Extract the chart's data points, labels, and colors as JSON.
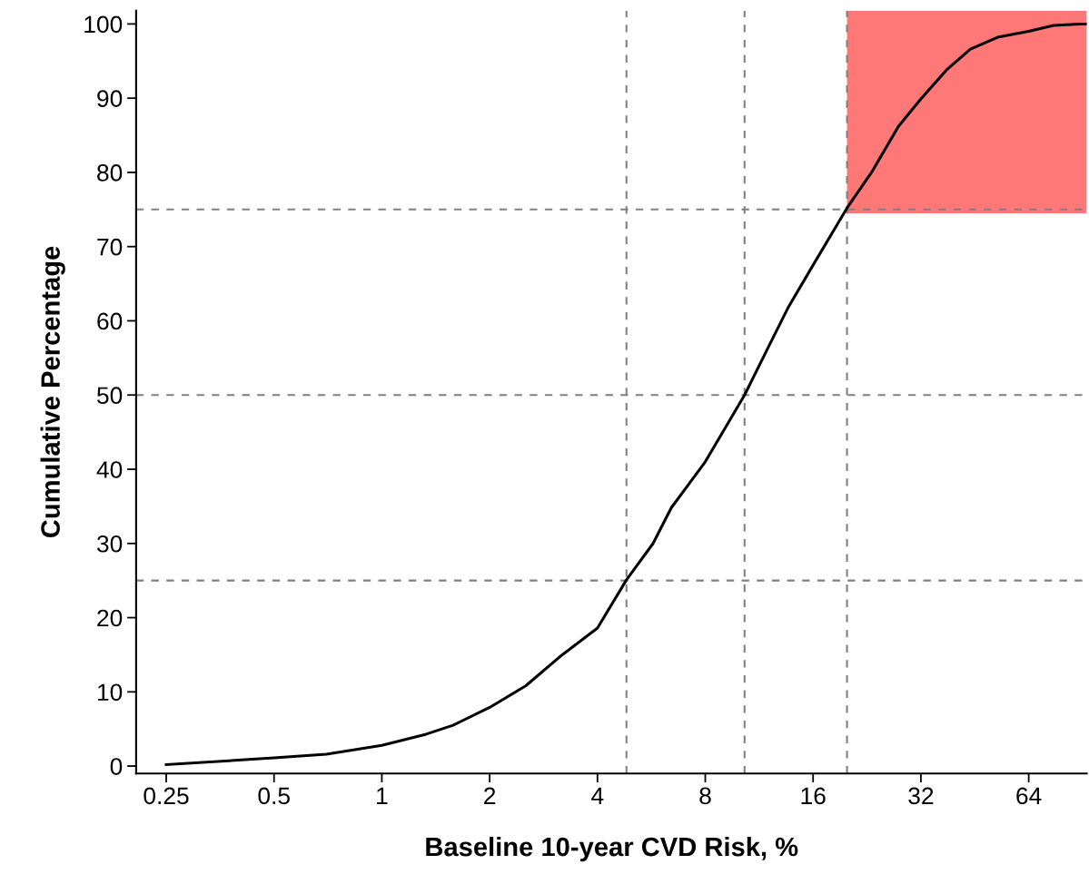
{
  "chart_data": {
    "type": "line",
    "xlabel": "Baseline 10-year CVD Risk, %",
    "ylabel": "Cumulative Percentage",
    "log": "x",
    "grid": false,
    "xlim": [
      0.206,
      93
    ],
    "xticks": [
      0.25,
      0.5,
      1,
      2,
      4,
      8,
      16,
      32,
      64
    ],
    "ylim": [
      -1,
      101.8
    ],
    "yticks": [
      0,
      10,
      20,
      30,
      40,
      50,
      60,
      70,
      80,
      90,
      100
    ],
    "series": [
      {
        "color": "#000000",
        "x": [
          0.25,
          0.5,
          0.7,
          1,
          1.33,
          1.58,
          2,
          2.52,
          3.19,
          4,
          4.82,
          5.72,
          6.43,
          8,
          10.3,
          12.1,
          13.6,
          16,
          19.9,
          23.3,
          27.7,
          32,
          37.9,
          44,
          52.4,
          64,
          75.1,
          89,
          93
        ],
        "values": [
          0.2,
          1.1,
          1.6,
          2.8,
          4.3,
          5.5,
          7.9,
          10.8,
          15.0,
          18.6,
          25.1,
          30,
          34.8,
          41,
          50,
          56.8,
          61.7,
          67.5,
          75.2,
          80,
          86.2,
          89.9,
          93.9,
          96.6,
          98.2,
          99,
          99.8,
          100,
          100
        ],
        "lower": [
          null,
          null,
          null,
          null,
          null,
          null,
          null,
          null,
          null,
          null,
          null,
          null,
          null,
          null,
          null,
          null,
          null,
          null,
          74.5,
          74.5,
          74.5,
          74.5,
          74.5,
          74.5,
          74.5,
          74.5,
          74.5,
          74.5,
          74.5
        ],
        "upper": [
          null,
          null,
          null,
          null,
          null,
          null,
          null,
          null,
          null,
          null,
          null,
          null,
          null,
          null,
          null,
          null,
          null,
          null,
          101.8,
          101.8,
          101.8,
          101.8,
          101.8,
          101.8,
          101.8,
          101.8,
          101.8,
          101.8,
          101.8
        ]
      }
    ],
    "ref_lines": [
      {
        "axis": "x",
        "value": 4.82,
        "color": "#808080",
        "line_style": "dashed"
      },
      {
        "axis": "x",
        "value": 10.3,
        "color": "#808080",
        "line_style": "dashed"
      },
      {
        "axis": "x",
        "value": 19.9,
        "color": "#808080",
        "line_style": "dashed"
      },
      {
        "axis": "y",
        "value": 25,
        "color": "#808080",
        "line_style": "dashed"
      },
      {
        "axis": "y",
        "value": 50,
        "color": "#808080",
        "line_style": "dashed"
      },
      {
        "axis": "y",
        "value": 75,
        "color": "#808080",
        "line_style": "dashed"
      }
    ]
  }
}
